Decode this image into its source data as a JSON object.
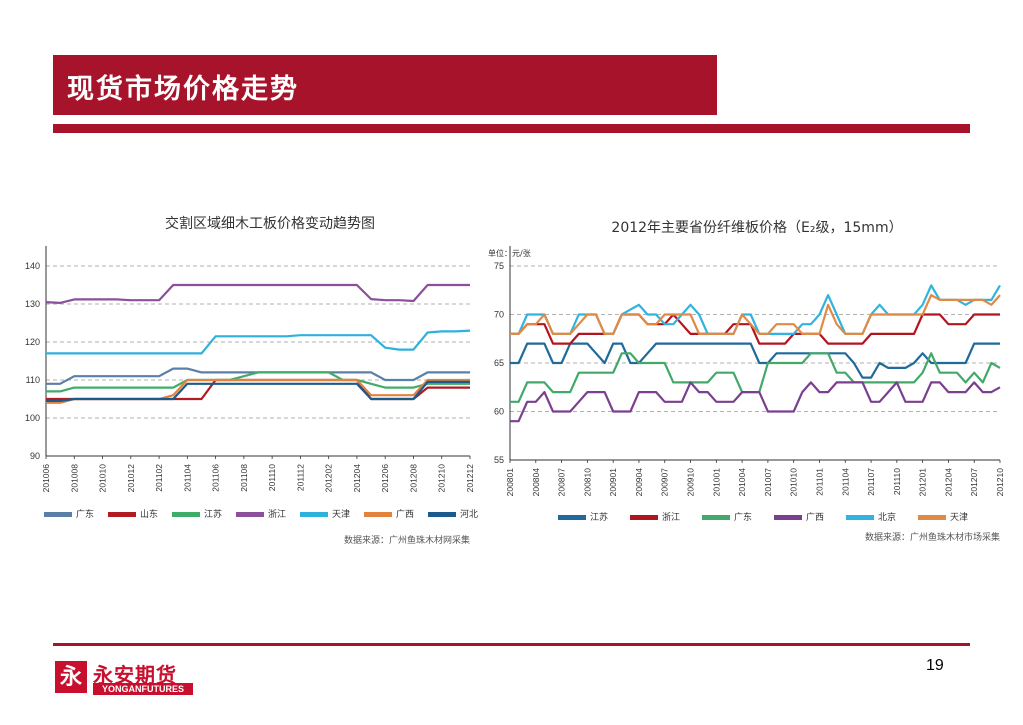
{
  "slide": {
    "title": "现货市场价格走势",
    "page_number": "19",
    "logo_cn": "永安期货",
    "logo_en": "YONGANFUTURES",
    "logo_mark": "永"
  },
  "colors": {
    "brand": "#a6132a",
    "guangdong": "#5b7fa6",
    "shandong": "#b01c22",
    "jiangsu": "#3fad6a",
    "zhejiang": "#8c4f9a",
    "tianjin": "#2eb1dc",
    "guangxi": "#e2823c",
    "hebei": "#1d5a8c",
    "jiangsu2": "#1f6a9a",
    "zhejiang2": "#b3151f",
    "guangdong2": "#43a86a",
    "guangxi2": "#7b3f8f",
    "beijing2": "#31b3e0",
    "tianjin2": "#e08a46"
  },
  "chart_data": [
    {
      "type": "line",
      "title": "交割区域细木工板价格变动趋势图",
      "x": [
        "201006",
        "201007",
        "201008",
        "201009",
        "201010",
        "201011",
        "201012",
        "201101",
        "201102",
        "201103",
        "201104",
        "201105",
        "201106",
        "201107",
        "201108",
        "201109",
        "201110",
        "201111",
        "201112",
        "201201",
        "201202",
        "201203",
        "201204",
        "201205",
        "201206",
        "201207",
        "201208",
        "201209",
        "201210",
        "201211",
        "201212"
      ],
      "x_tick_labels": [
        "201006",
        "201008",
        "201010",
        "201012",
        "201102",
        "201104",
        "201106",
        "201108",
        "201110",
        "201112",
        "201202",
        "201204",
        "201206",
        "201208",
        "201210",
        "201212"
      ],
      "ylim": [
        90,
        140
      ],
      "y_ticks": [
        90,
        100,
        110,
        120,
        130,
        140
      ],
      "grid": "horizontal dashed",
      "legend": "bottom",
      "source": "数据来源：广州鱼珠木材网采集",
      "series": [
        {
          "name": "广东",
          "color": "#5b7fa6",
          "values": [
            109,
            109,
            111,
            111,
            111,
            111,
            111,
            111,
            111,
            113,
            113,
            112,
            112,
            112,
            112,
            112,
            112,
            112,
            112,
            112,
            112,
            112,
            112,
            112,
            110,
            110,
            110,
            112,
            112,
            112,
            112
          ]
        },
        {
          "name": "山东",
          "color": "#b01c22",
          "values": [
            105,
            105,
            105,
            105,
            105,
            105,
            105,
            105,
            105,
            105,
            105,
            105,
            110,
            110,
            110,
            110,
            110,
            110,
            110,
            110,
            110,
            110,
            110,
            105,
            105,
            105,
            105,
            108,
            108,
            108,
            108
          ]
        },
        {
          "name": "江苏",
          "color": "#3fad6a",
          "values": [
            107,
            107,
            108,
            108,
            108,
            108,
            108,
            108,
            108,
            108,
            110,
            110,
            110,
            110,
            111,
            112,
            112,
            112,
            112,
            112,
            112,
            110,
            110,
            109,
            108,
            108,
            108,
            109,
            109,
            109,
            109
          ]
        },
        {
          "name": "浙江",
          "color": "#8c4f9a",
          "values": [
            130.5,
            130.3,
            131.2,
            131.2,
            131.2,
            131.2,
            131,
            131,
            131,
            135,
            135,
            135,
            135,
            135,
            135,
            135,
            135,
            135,
            135,
            135,
            135,
            135,
            135,
            131.3,
            131,
            131,
            130.8,
            135,
            135,
            135,
            135
          ]
        },
        {
          "name": "天津",
          "color": "#2eb1dc",
          "values": [
            117,
            117,
            117,
            117,
            117,
            117,
            117,
            117,
            117,
            117,
            117,
            117,
            121.5,
            121.5,
            121.5,
            121.5,
            121.5,
            121.5,
            121.8,
            121.8,
            121.8,
            121.8,
            121.8,
            121.8,
            118.5,
            118,
            118,
            122.5,
            122.8,
            122.8,
            123
          ]
        },
        {
          "name": "广西",
          "color": "#e2823c",
          "values": [
            104,
            104,
            105,
            105,
            105,
            105,
            105,
            105,
            105,
            106,
            110,
            110,
            110,
            110,
            110,
            110,
            110,
            110,
            110,
            110,
            110,
            110,
            110,
            106,
            106,
            106,
            106,
            110,
            110,
            110,
            110
          ]
        },
        {
          "name": "河北",
          "color": "#1d5a8c",
          "values": [
            104.5,
            104.5,
            105,
            105,
            105,
            105,
            105,
            105,
            105,
            105,
            109,
            109,
            109,
            109,
            109,
            109,
            109,
            109,
            109,
            109,
            109,
            109,
            109,
            105,
            105,
            105,
            105,
            109.5,
            109.5,
            109.5,
            109.5
          ]
        }
      ]
    },
    {
      "type": "line",
      "title": "2012年主要省份纤维板价格（E₂级，15mm）",
      "unit_label": "单位：元/张",
      "x": [
        "200801",
        "200802",
        "200803",
        "200804",
        "200805",
        "200806",
        "200807",
        "200808",
        "200809",
        "200810",
        "200811",
        "200812",
        "200901",
        "200902",
        "200903",
        "200904",
        "200905",
        "200906",
        "200907",
        "200908",
        "200909",
        "200910",
        "200911",
        "200912",
        "201001",
        "201002",
        "201003",
        "201004",
        "201005",
        "201006",
        "201007",
        "201008",
        "201009",
        "201010",
        "201011",
        "201012",
        "201101",
        "201102",
        "201103",
        "201104",
        "201105",
        "201106",
        "201107",
        "201108",
        "201109",
        "201110",
        "201111",
        "201112",
        "201201",
        "201202",
        "201203",
        "201204",
        "201205",
        "201206",
        "201207",
        "201208",
        "201209",
        "201210"
      ],
      "x_tick_labels": [
        "200801",
        "200804",
        "200807",
        "200810",
        "200901",
        "200904",
        "200907",
        "200910",
        "201001",
        "201004",
        "201007",
        "201010",
        "201101",
        "201104",
        "201107",
        "201110",
        "201201",
        "201204",
        "201207",
        "201210"
      ],
      "ylim": [
        55,
        75
      ],
      "y_ticks": [
        55,
        60,
        65,
        70,
        75
      ],
      "grid": "horizontal dashed",
      "legend": "bottom",
      "source": "数据来源：广州鱼珠木材市场采集",
      "series": [
        {
          "name": "江苏",
          "color": "#1f6a9a",
          "values": [
            65,
            65,
            67,
            67,
            67,
            65,
            65,
            67,
            67,
            67,
            66,
            65,
            67,
            67,
            65,
            65,
            66,
            67,
            67,
            67,
            67,
            67,
            67,
            67,
            67,
            67,
            67,
            67,
            67,
            65,
            65,
            66,
            66,
            66,
            66,
            66,
            66,
            66,
            66,
            66,
            65,
            63.5,
            63.5,
            65,
            64.5,
            64.5,
            64.5,
            65,
            66,
            65,
            65,
            65,
            65,
            65,
            67,
            67,
            67,
            67
          ]
        },
        {
          "name": "浙江",
          "color": "#b3151f",
          "values": [
            68,
            68,
            69,
            69,
            69,
            67,
            67,
            67,
            68,
            68,
            68,
            68,
            68,
            70,
            70,
            70,
            69,
            69,
            69,
            70,
            69,
            68,
            68,
            68,
            68,
            68,
            69,
            69,
            69,
            67,
            67,
            67,
            67,
            68,
            68,
            68,
            68,
            67,
            67,
            67,
            67,
            67,
            68,
            68,
            68,
            68,
            68,
            68,
            70,
            70,
            70,
            69,
            69,
            69,
            70,
            70,
            70,
            70
          ]
        },
        {
          "name": "广东",
          "color": "#43a86a",
          "values": [
            61,
            61,
            63,
            63,
            63,
            62,
            62,
            62,
            64,
            64,
            64,
            64,
            64,
            66,
            66,
            65,
            65,
            65,
            65,
            63,
            63,
            63,
            63,
            63,
            64,
            64,
            64,
            62,
            62,
            62,
            65,
            65,
            65,
            65,
            65,
            66,
            66,
            66,
            64,
            64,
            63,
            63,
            63,
            63,
            63,
            63,
            63,
            63,
            64,
            66,
            64,
            64,
            64,
            63,
            64,
            63,
            65,
            64.5
          ]
        },
        {
          "name": "广西",
          "color": "#7b3f8f",
          "values": [
            59,
            59,
            61,
            61,
            62,
            60,
            60,
            60,
            61,
            62,
            62,
            62,
            60,
            60,
            60,
            62,
            62,
            62,
            61,
            61,
            61,
            63,
            62,
            62,
            61,
            61,
            61,
            62,
            62,
            62,
            60,
            60,
            60,
            60,
            62,
            63,
            62,
            62,
            63,
            63,
            63,
            63,
            61,
            61,
            62,
            63,
            61,
            61,
            61,
            63,
            63,
            62,
            62,
            62,
            63,
            62,
            62,
            62.5
          ]
        },
        {
          "name": "北京",
          "color": "#31b3e0",
          "values": [
            68,
            68,
            70,
            70,
            70,
            68,
            68,
            68,
            70,
            70,
            70,
            68,
            68,
            70,
            70.5,
            71,
            70,
            70,
            69,
            69,
            70,
            71,
            70,
            68,
            68,
            68,
            68,
            70,
            70,
            68,
            68,
            68,
            68,
            68,
            69,
            69,
            70,
            72,
            70,
            68,
            68,
            68,
            70,
            71,
            70,
            70,
            70,
            70,
            71,
            73,
            71.5,
            71.5,
            71.5,
            71,
            71.5,
            71.5,
            71.5,
            73
          ]
        },
        {
          "name": "天津",
          "color": "#e08a46",
          "values": [
            68,
            68,
            69,
            69,
            70,
            68,
            68,
            68,
            69,
            70,
            70,
            68,
            68,
            70,
            70,
            70,
            69,
            69,
            70,
            70,
            70,
            70,
            68,
            68,
            68,
            68,
            68,
            70,
            69,
            68,
            68,
            69,
            69,
            69,
            68,
            68,
            68,
            71,
            69,
            68,
            68,
            68,
            70,
            70,
            70,
            70,
            70,
            70,
            70,
            72,
            71.5,
            71.5,
            71.5,
            71.5,
            71.5,
            71.5,
            71,
            72
          ]
        }
      ]
    }
  ]
}
